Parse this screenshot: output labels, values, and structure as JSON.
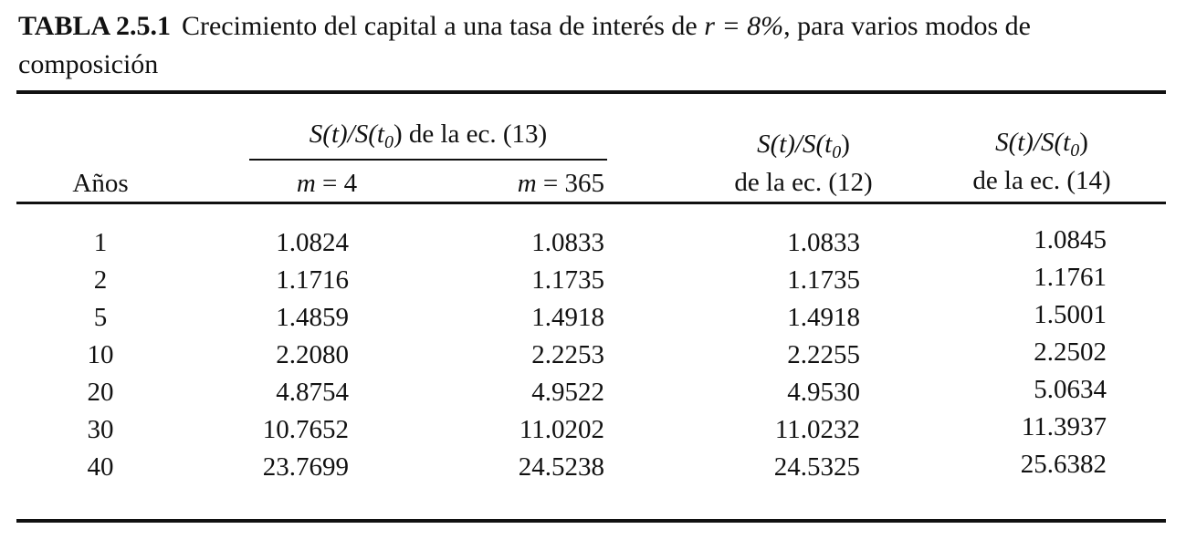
{
  "caption": {
    "label": "TABLA 2.5.1",
    "text_before_var": "Crecimiento del capital a una tasa de interés de",
    "var": "r",
    "equals_rate": " = 8%",
    "text_after": ", para varios modos de composición"
  },
  "header": {
    "years": "Años",
    "group_formula_pre": "S(t)/S(t",
    "group_formula_sub": "0",
    "group_formula_post": ") de la ec. (13)",
    "m4_var": "m",
    "m4_eq": " = 4",
    "m365_var": "m",
    "m365_eq": " = 365",
    "col3_formula_pre": "S(t)/S(t",
    "col3_formula_sub": "0",
    "col3_formula_post": ")",
    "col3_ref": "de la ec. (12)",
    "col4_formula_pre": "S(t)/S(t",
    "col4_formula_sub": "0",
    "col4_formula_post": ")",
    "col4_ref": "de la ec. (14)"
  },
  "rows": [
    {
      "years": "1",
      "m4": "1.0824",
      "m365": "1.0833",
      "eq12": "1.0833",
      "eq14": "1.0845"
    },
    {
      "years": "2",
      "m4": "1.1716",
      "m365": "1.1735",
      "eq12": "1.1735",
      "eq14": "1.1761"
    },
    {
      "years": "5",
      "m4": "1.4859",
      "m365": "1.4918",
      "eq12": "1.4918",
      "eq14": "1.5001"
    },
    {
      "years": "10",
      "m4": "2.2080",
      "m365": "2.2253",
      "eq12": "2.2255",
      "eq14": "2.2502"
    },
    {
      "years": "20",
      "m4": "4.8754",
      "m365": "4.9522",
      "eq12": "4.9530",
      "eq14": "5.0634"
    },
    {
      "years": "30",
      "m4": "10.7652",
      "m365": "11.0202",
      "eq12": "11.0232",
      "eq14": "11.3937"
    },
    {
      "years": "40",
      "m4": "23.7699",
      "m365": "24.5238",
      "eq12": "24.5325",
      "eq14": "25.6382"
    }
  ]
}
